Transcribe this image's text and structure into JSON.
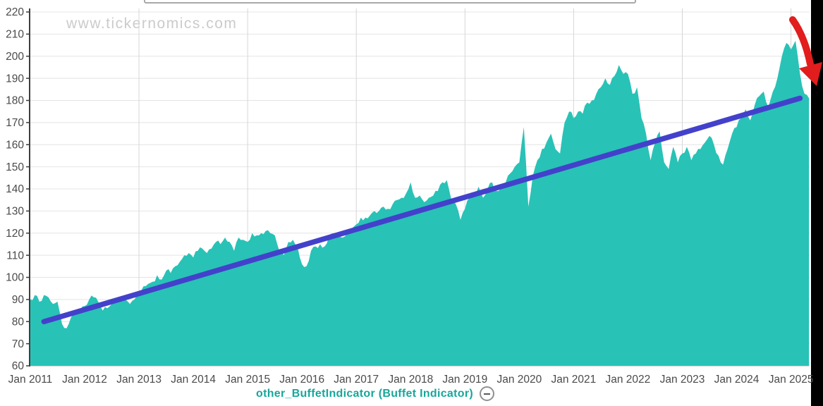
{
  "watermark": "www.tickernomics.com",
  "legend": {
    "label": "other_BuffetIndicator (Buffet Indicator)",
    "toggle_icon": "minus-circle-icon"
  },
  "colors": {
    "area": "#29c2b6",
    "trend": "#4341cb",
    "arrow": "#e11d1d",
    "axis_text": "#4a4a4a",
    "grid": "#e4e4e4",
    "grid_vertical": "#d6d6d6",
    "axis_line": "#3d3d3d",
    "watermark": "#cbcbcb",
    "legend_text": "#16a79b",
    "side_strip": "#000000"
  },
  "chart_data": {
    "type": "area",
    "title": "",
    "xlabel": "",
    "ylabel": "",
    "grid": true,
    "legend_position": "bottom-center",
    "ylim": [
      60,
      220
    ],
    "y_axis": {
      "min": 60,
      "max": 220,
      "step": 10
    },
    "x_tick_labels": [
      "Jan 2011",
      "Jan 2012",
      "Jan 2013",
      "Jan 2014",
      "Jan 2015",
      "Jan 2016",
      "Jan 2017",
      "Jan 2018",
      "Jan 2019",
      "Jan 2020",
      "Jan 2021",
      "Jan 2022",
      "Jan 2023",
      "Jan 2024",
      "Jan 2025"
    ],
    "series": [
      {
        "name": "other_BuffetIndicator (Buffet Indicator)",
        "x_start": "2011-01",
        "x_interval": "month",
        "values": [
          90,
          92,
          89,
          92,
          91,
          88,
          89,
          79,
          77,
          82,
          84,
          85,
          87,
          90,
          91,
          89,
          85,
          86,
          88,
          90,
          91,
          90,
          88,
          90,
          94,
          96,
          97,
          98,
          101,
          99,
          103,
          102,
          105,
          107,
          110,
          111,
          109,
          112,
          113,
          111,
          113,
          116,
          115,
          118,
          116,
          112,
          118,
          117,
          116,
          120,
          119,
          120,
          121,
          120,
          119,
          112,
          110,
          116,
          117,
          114,
          106,
          105,
          112,
          114,
          115,
          114,
          119,
          120,
          119,
          118,
          120,
          122,
          124,
          127,
          127,
          128,
          130,
          130,
          132,
          131,
          133,
          135,
          136,
          138,
          143,
          136,
          137,
          134,
          136,
          137,
          139,
          143,
          144,
          135,
          133,
          126,
          131,
          136,
          138,
          141,
          136,
          140,
          143,
          139,
          141,
          143,
          147,
          150,
          152,
          168,
          132,
          146,
          153,
          158,
          161,
          165,
          158,
          156,
          170,
          175,
          172,
          175,
          174,
          179,
          180,
          183,
          186,
          190,
          187,
          191,
          196,
          192,
          192,
          183,
          186,
          172,
          165,
          153,
          161,
          166,
          152,
          149,
          159,
          152,
          156,
          159,
          153,
          156,
          158,
          161,
          164,
          160,
          155,
          151,
          158,
          165,
          168,
          172,
          176,
          171,
          178,
          182,
          184,
          177,
          184,
          190,
          200,
          206,
          203,
          207,
          192,
          183,
          181
        ]
      }
    ],
    "trendline": {
      "start_x": "2011-04",
      "start_value": 80,
      "end_x": "2025-03",
      "end_value": 181
    },
    "annotation": {
      "shape": "arrow",
      "color": "#e11d1d",
      "position": "top-right",
      "pointing": "down-right toward final drop of the series"
    }
  }
}
